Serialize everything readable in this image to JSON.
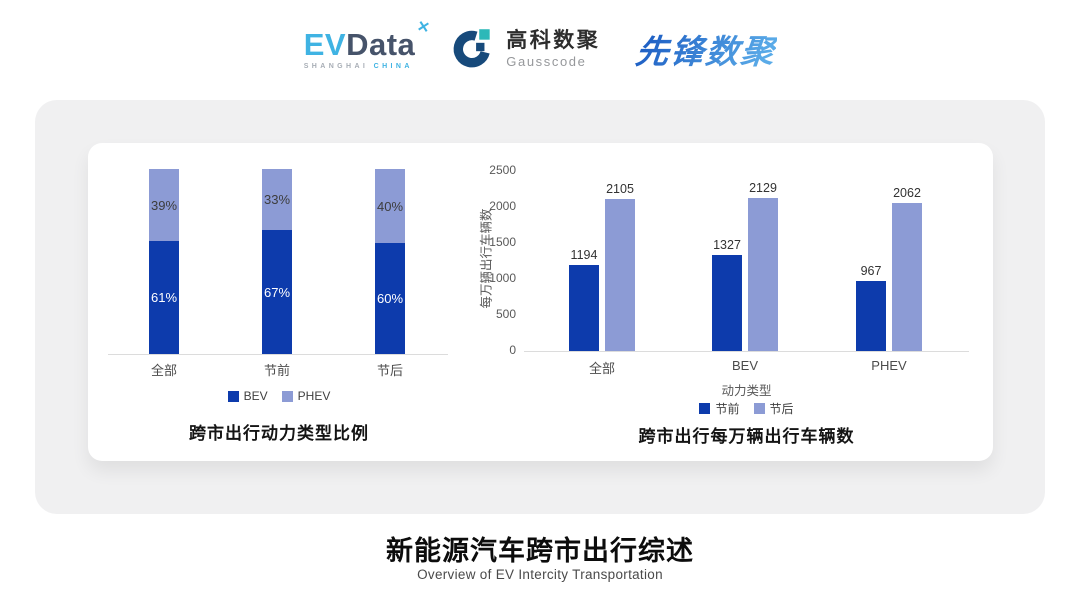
{
  "header": {
    "evdata": {
      "ev": "EV",
      "data": "Data",
      "sub_left": "SHANGHAI",
      "sub_right": "CHINA"
    },
    "gausscode": {
      "cn": "高科数聚",
      "en": "Gausscode"
    },
    "xianfeng": {
      "text": "先锋数聚"
    }
  },
  "brand_colors": {
    "evdata_blue": "#3fb3e3",
    "evdata_dark": "#46536a",
    "gausscode_navy": "#174a7b",
    "gausscode_teal": "#2cb8b8",
    "xianfeng_dark": "#1e5fc4",
    "xianfeng_light": "#5aabe8"
  },
  "chart_data": [
    {
      "type": "bar",
      "variant": "stacked",
      "title": "跨市出行动力类型比例",
      "categories": [
        "全部",
        "节前",
        "节后"
      ],
      "series": [
        {
          "name": "BEV",
          "color": "#0d3bac",
          "values": [
            61,
            67,
            60
          ],
          "labels": [
            "61%",
            "67%",
            "60%"
          ],
          "label_color": "#ffffff"
        },
        {
          "name": "PHEV",
          "color": "#8c9bd5",
          "values": [
            39,
            33,
            40
          ],
          "labels": [
            "39%",
            "33%",
            "40%"
          ],
          "label_color": "#3d3d3d"
        }
      ],
      "ylim": [
        0,
        100
      ],
      "legend": [
        "BEV",
        "PHEV"
      ],
      "legend_position": "bottom",
      "grid": false
    },
    {
      "type": "bar",
      "variant": "grouped",
      "title": "跨市出行每万辆出行车辆数",
      "categories": [
        "全部",
        "BEV",
        "PHEV"
      ],
      "xlabel": "动力类型",
      "ylabel": "每万辆出行车辆数",
      "yticks": [
        0,
        500,
        1000,
        1500,
        2000,
        2500
      ],
      "ylim": [
        0,
        2500
      ],
      "series": [
        {
          "name": "节前",
          "color": "#0d3bac",
          "values": [
            1194,
            1327,
            967
          ]
        },
        {
          "name": "节后",
          "color": "#8c9bd5",
          "values": [
            2105,
            2129,
            2062
          ]
        }
      ],
      "legend": [
        "节前",
        "节后"
      ],
      "legend_position": "bottom",
      "grid": false
    }
  ],
  "footer": {
    "title": "新能源汽车跨市出行综述",
    "subtitle": "Overview of EV Intercity Transportation"
  }
}
